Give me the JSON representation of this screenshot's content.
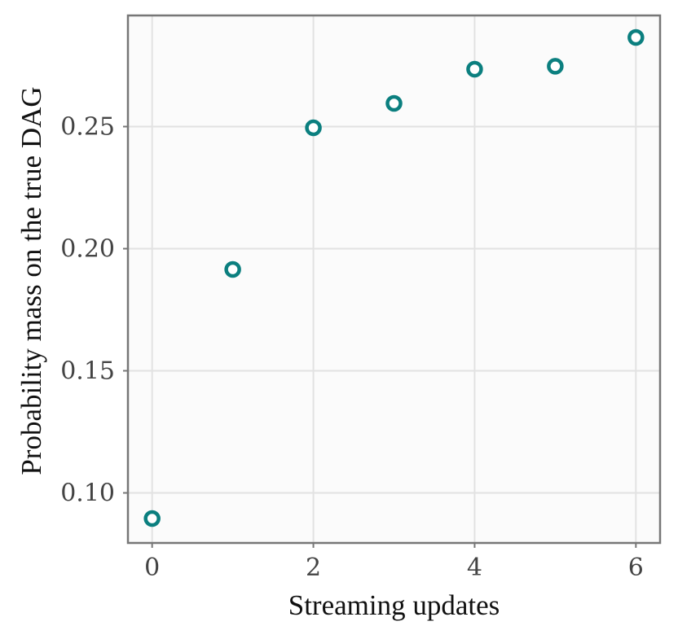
{
  "chart_data": {
    "type": "scatter",
    "title": "",
    "xlabel": "Streaming updates",
    "ylabel": "Probability mass on the true DAG",
    "xlim": [
      -0.3,
      6.3
    ],
    "ylim": [
      0.0795,
      0.2955
    ],
    "x_ticks": [
      0,
      2,
      4,
      6
    ],
    "x_tick_labels": [
      "0",
      "2",
      "4",
      "6"
    ],
    "y_ticks": [
      0.1,
      0.15,
      0.2,
      0.25
    ],
    "y_tick_labels": [
      "0.10",
      "0.15",
      "0.20",
      "0.25"
    ],
    "grid": true,
    "legend": "none",
    "marker": "hollow-circle",
    "colors": {
      "marker": "#0b7f7f",
      "plot_background": "#fbfbfb",
      "grid": "#e2e2e2",
      "frame": "#777777"
    },
    "series": [
      {
        "x": [
          0,
          1,
          2,
          3,
          4,
          5,
          6
        ],
        "y": [
          0.0895,
          0.1915,
          0.2495,
          0.2595,
          0.2735,
          0.2747,
          0.2865
        ]
      }
    ]
  }
}
